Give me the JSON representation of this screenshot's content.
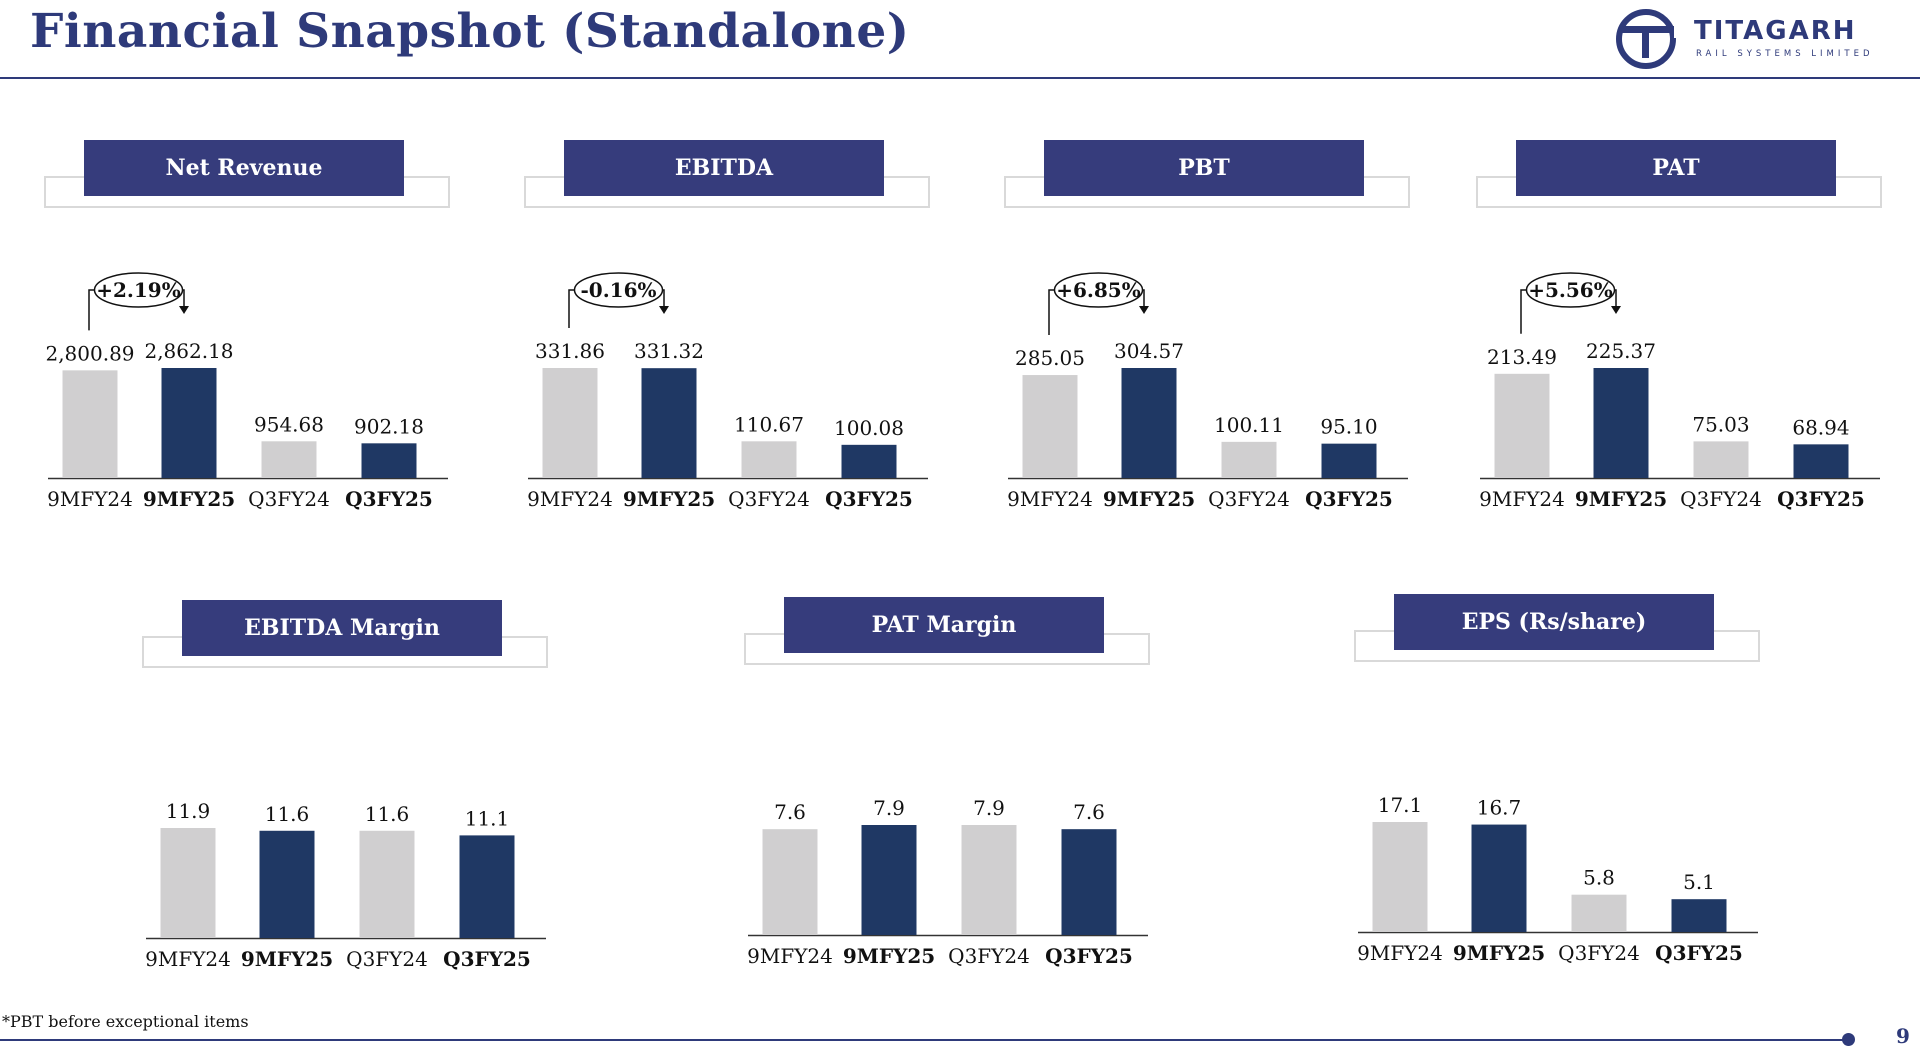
{
  "page": {
    "title": "Financial Snapshot (Standalone)",
    "footnote": "*PBT before exceptional items",
    "page_number": "9"
  },
  "logo": {
    "name": "TITAGARH",
    "tagline": "RAIL SYSTEMS LIMITED"
  },
  "colors": {
    "accent": "#2e3a7a",
    "header_fill": "#363c7c",
    "bar_prior": "#d0cfd0",
    "bar_current": "#1f3864"
  },
  "chart_data": [
    {
      "type": "bar",
      "title": "Net Revenue",
      "categories": [
        "9MFY24",
        "9MFY25",
        "Q3FY24",
        "Q3FY25"
      ],
      "values": [
        2800.89,
        2862.18,
        954.68,
        902.18
      ],
      "labels": [
        "2,800.89",
        "2,862.18",
        "954.68",
        "902.18"
      ],
      "bold_categories": [
        false,
        true,
        false,
        true
      ],
      "growth": "+2.19%"
    },
    {
      "type": "bar",
      "title": "EBITDA",
      "categories": [
        "9MFY24",
        "9MFY25",
        "Q3FY24",
        "Q3FY25"
      ],
      "values": [
        331.86,
        331.32,
        110.67,
        100.08
      ],
      "labels": [
        "331.86",
        "331.32",
        "110.67",
        "100.08"
      ],
      "bold_categories": [
        false,
        true,
        false,
        true
      ],
      "growth": "-0.16%"
    },
    {
      "type": "bar",
      "title": "PBT",
      "categories": [
        "9MFY24",
        "9MFY25",
        "Q3FY24",
        "Q3FY25"
      ],
      "values": [
        285.05,
        304.57,
        100.11,
        95.1
      ],
      "labels": [
        "285.05",
        "304.57",
        "100.11",
        "95.10"
      ],
      "bold_categories": [
        false,
        true,
        false,
        true
      ],
      "growth": "+6.85%"
    },
    {
      "type": "bar",
      "title": "PAT",
      "categories": [
        "9MFY24",
        "9MFY25",
        "Q3FY24",
        "Q3FY25"
      ],
      "values": [
        213.49,
        225.37,
        75.03,
        68.94
      ],
      "labels": [
        "213.49",
        "225.37",
        "75.03",
        "68.94"
      ],
      "bold_categories": [
        false,
        true,
        false,
        true
      ],
      "growth": "+5.56%"
    },
    {
      "type": "bar",
      "title": "EBITDA Margin",
      "categories": [
        "9MFY24",
        "9MFY25",
        "Q3FY24",
        "Q3FY25"
      ],
      "values": [
        11.9,
        11.6,
        11.6,
        11.1
      ],
      "labels": [
        "11.9",
        "11.6",
        "11.6",
        "11.1"
      ],
      "bold_categories": [
        false,
        true,
        false,
        true
      ]
    },
    {
      "type": "bar",
      "title": "PAT Margin",
      "categories": [
        "9MFY24",
        "9MFY25",
        "Q3FY24",
        "Q3FY25"
      ],
      "values": [
        7.6,
        7.9,
        7.9,
        7.6
      ],
      "labels": [
        "7.6",
        "7.9",
        "7.9",
        "7.6"
      ],
      "bold_categories": [
        false,
        true,
        false,
        true
      ]
    },
    {
      "type": "bar",
      "title": "EPS (Rs/share)",
      "categories": [
        "9MFY24",
        "9MFY25",
        "Q3FY24",
        "Q3FY25"
      ],
      "values": [
        17.1,
        16.7,
        5.8,
        5.1
      ],
      "labels": [
        "17.1",
        "16.7",
        "5.8",
        "5.1"
      ],
      "bold_categories": [
        false,
        true,
        false,
        true
      ]
    }
  ]
}
